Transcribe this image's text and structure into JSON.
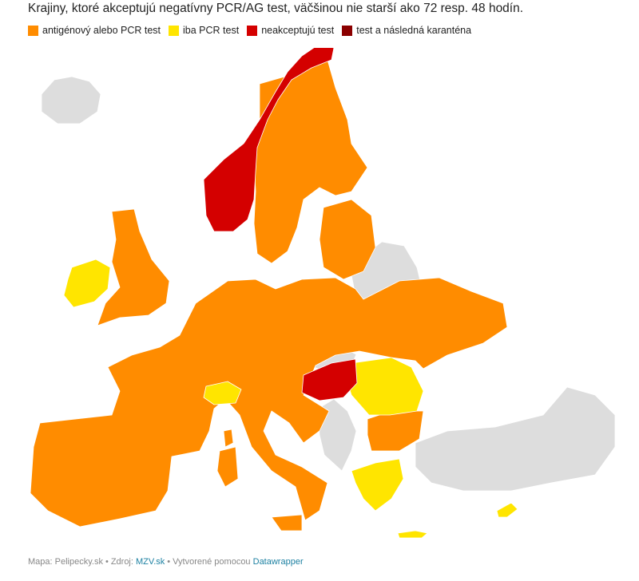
{
  "title": "Krajiny, ktoré akceptujú negatívny PCR/AG test, väčšinou nie starší ako 72 resp. 48 hodín.",
  "legend": [
    {
      "label": "antigénový alebo PCR test",
      "color": "#ff8c00"
    },
    {
      "label": "iba PCR test",
      "color": "#ffe500"
    },
    {
      "label": "neakceptujú test",
      "color": "#d40000"
    },
    {
      "label": "test a následná karanténa",
      "color": "#8b0000"
    }
  ],
  "colors": {
    "no_data": "#dddddd"
  },
  "footer": {
    "map_prefix": "Mapa: Pelipecky.sk",
    "source_prefix": "Zdroj:",
    "source_link": "MZV.sk",
    "created_prefix": "Vytvorené pomocou",
    "created_link": "Datawrapper"
  }
}
